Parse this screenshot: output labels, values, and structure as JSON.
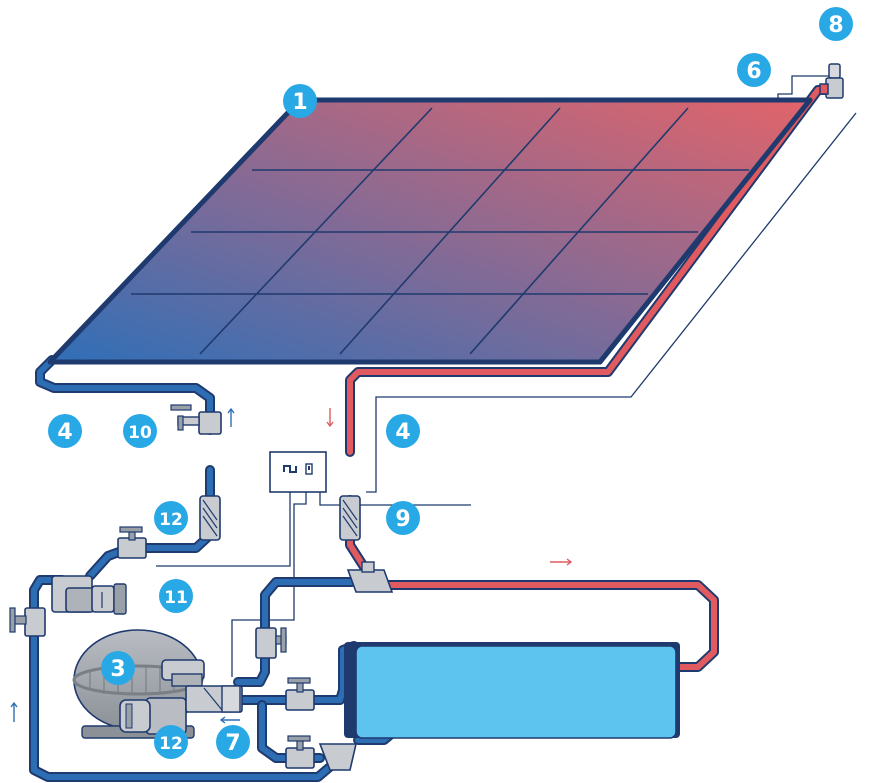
{
  "colors": {
    "cold_pipe": "#2d6db3",
    "hot_pipe": "#e05a5f",
    "pipe_outline": "#1f3a6e",
    "panel_cold": "#3a66b0",
    "panel_hot": "#e0636a",
    "badge": "#29a8e6",
    "pool_water": "#5cc4ef",
    "equipment": "#c8ccd1"
  },
  "icons": {
    "flow_arrow": "arrow-icon",
    "valve": "valve-icon",
    "check_valve": "check-valve-icon",
    "controller": "controller-icon"
  },
  "labels": {
    "l1": "1",
    "l3": "3",
    "l4a": "4",
    "l4b": "4",
    "l6": "6",
    "l7": "7",
    "l8": "8",
    "l9": "9",
    "l10": "10",
    "l11": "11",
    "l12a": "12",
    "l12b": "12"
  }
}
